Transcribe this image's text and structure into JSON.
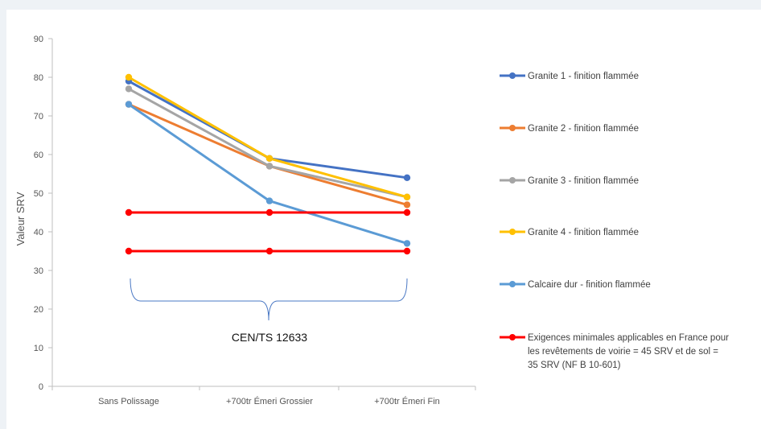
{
  "chart_data": {
    "type": "line",
    "title": "",
    "xlabel": "",
    "ylabel": "Valeur SRV",
    "ylim": [
      0,
      90
    ],
    "yticks": [
      0,
      10,
      20,
      30,
      40,
      50,
      60,
      70,
      80,
      90
    ],
    "categories": [
      "Sans Polissage",
      "+700tr Émeri Grossier",
      "+700tr Émeri Fin"
    ],
    "grid": false,
    "legend_position": "right",
    "series": [
      {
        "name": "Granite 1 - finition flammée",
        "color": "#4472c4",
        "values": [
          79,
          59,
          54
        ],
        "legend_lines": [
          "Granite 1 - finition flammée"
        ]
      },
      {
        "name": "Granite 2 - finition flammée",
        "color": "#ed7d31",
        "values": [
          73,
          57,
          47
        ],
        "legend_lines": [
          "Granite 2 - finition flammée"
        ]
      },
      {
        "name": "Granite 3 - finition flammée",
        "color": "#a5a5a5",
        "values": [
          77,
          57,
          49
        ],
        "legend_lines": [
          "Granite 3 - finition flammée"
        ]
      },
      {
        "name": "Granite 4 - finition flammée",
        "color": "#ffc000",
        "values": [
          80,
          59,
          49
        ],
        "legend_lines": [
          "Granite 4 - finition flammée"
        ]
      },
      {
        "name": "Calcaire dur - finition flammée",
        "color": "#5b9bd5",
        "values": [
          73,
          48,
          37
        ],
        "legend_lines": [
          "Calcaire dur - finition flammée"
        ]
      },
      {
        "name": "Exigences minimales applicables en France pour les revêtements de voirie = 45 SRV et de sol = 35 SRV (NF B 10-601)",
        "color": "#ff0000",
        "values": [
          45,
          45,
          45
        ],
        "legend_lines": [
          "Exigences minimales applicables en France pour",
          "les revêtements de voirie = 45 SRV et de sol =",
          "35 SRV (NF B 10-601)"
        ]
      },
      {
        "name": "",
        "color": "#ff0000",
        "values": [
          35,
          35,
          35
        ],
        "legend_lines": []
      }
    ],
    "annotations": [
      {
        "text": "CEN/TS 12633"
      }
    ]
  }
}
